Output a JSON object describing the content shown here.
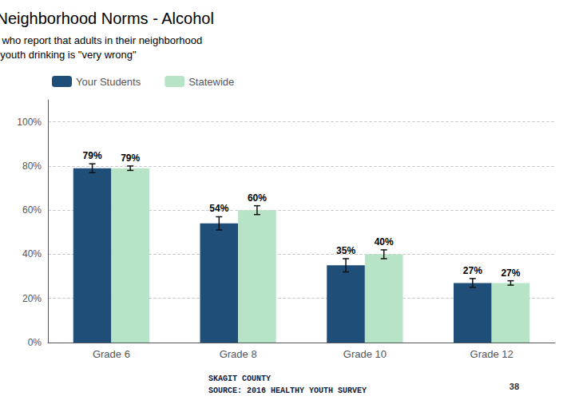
{
  "chart_data": {
    "type": "bar",
    "title": "Perception of Neighborhood Norms - Alcohol",
    "subtitle": "Percent of students who report that adults in their neighborhood\nthink youth drinking is \"very wrong\"",
    "categories": [
      "Grade 6",
      "Grade 8",
      "Grade 10",
      "Grade 12"
    ],
    "series": [
      {
        "name": "Your Students",
        "color": "#1F4E79",
        "values": [
          79,
          54,
          35,
          27
        ],
        "value_labels": [
          "79%",
          "54%",
          "35%",
          "27%"
        ],
        "errors": [
          2,
          3,
          3,
          2
        ]
      },
      {
        "name": "Statewide",
        "color": "#B7E4C7",
        "values": [
          79,
          60,
          40,
          27
        ],
        "value_labels": [
          "79%",
          "60%",
          "40%",
          "27%"
        ],
        "errors": [
          1,
          2,
          2,
          1
        ]
      }
    ],
    "ylim": [
      0,
      110
    ],
    "yticks": [
      {
        "value": 0,
        "label": "0%"
      },
      {
        "value": 20,
        "label": "20%"
      },
      {
        "value": 40,
        "label": "40%"
      },
      {
        "value": 60,
        "label": "60%"
      },
      {
        "value": 80,
        "label": "80%"
      },
      {
        "value": 100,
        "label": "100%"
      }
    ],
    "grid": true,
    "legend": "upper left",
    "data_labels": true,
    "annotations": [
      "SKAGIT COUNTY\nSOURCE: 2016 HEALTHY YOUTH SURVEY",
      "38"
    ]
  }
}
